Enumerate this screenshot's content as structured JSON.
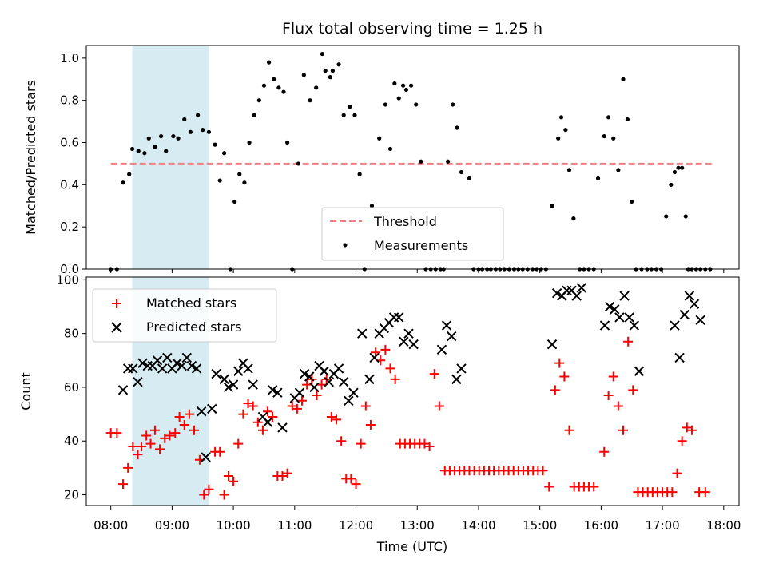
{
  "figure_title": "Flux total observing time = 1.25 h",
  "chart_data": [
    {
      "type": "scatter",
      "name": "ratio-panel",
      "xlim": [
        7.6,
        18.25
      ],
      "ylim": [
        0,
        1.06
      ],
      "ylabel": "Matched/Predicted stars",
      "yticks": [
        0,
        0.2,
        0.4,
        0.6,
        0.8,
        1.0
      ],
      "ytick_labels": [
        "0.0",
        "0.2",
        "0.4",
        "0.6",
        "0.8",
        "1.0"
      ],
      "shaded_span": [
        8.35,
        9.6
      ],
      "shade_color": "#add8e6",
      "threshold": 0.5,
      "threshold_color": "#f08080",
      "point_color": "#000000",
      "legend": {
        "position": "lower center",
        "entries": [
          "Threshold",
          "Measurements"
        ]
      },
      "x": [
        8.0,
        8.1,
        8.2,
        8.3,
        8.35,
        8.45,
        8.55,
        8.62,
        8.72,
        8.82,
        8.9,
        9.02,
        9.1,
        9.2,
        9.3,
        9.42,
        9.5,
        9.6,
        9.7,
        9.78,
        9.85,
        9.95,
        10.02,
        10.1,
        10.18,
        10.26,
        10.34,
        10.42,
        10.5,
        10.58,
        10.66,
        10.74,
        10.82,
        10.88,
        10.96,
        11.06,
        11.15,
        11.25,
        11.35,
        11.45,
        11.5,
        11.58,
        11.62,
        11.72,
        11.8,
        11.9,
        11.98,
        12.06,
        12.14,
        12.26,
        12.38,
        12.48,
        12.56,
        12.63,
        12.7,
        12.77,
        12.82,
        12.9,
        12.98,
        13.06,
        13.14,
        13.22,
        13.3,
        13.38,
        13.43,
        13.5,
        13.58,
        13.65,
        13.72,
        13.85,
        13.92,
        14.0,
        14.06,
        14.14,
        14.2,
        14.28,
        14.35,
        14.42,
        14.5,
        14.58,
        14.65,
        14.72,
        14.8,
        14.88,
        14.95,
        15.02,
        15.1,
        15.2,
        15.3,
        15.35,
        15.42,
        15.48,
        15.55,
        15.65,
        15.72,
        15.8,
        15.88,
        15.95,
        16.05,
        16.12,
        16.2,
        16.28,
        16.36,
        16.43,
        16.5,
        16.57,
        16.66,
        16.75,
        16.82,
        16.9,
        16.98,
        17.06,
        17.14,
        17.2,
        17.26,
        17.32,
        17.38,
        17.42,
        17.48,
        17.55,
        17.62,
        17.7,
        17.78
      ],
      "y": [
        0.0,
        0.0,
        0.41,
        0.45,
        0.57,
        0.56,
        0.55,
        0.62,
        0.58,
        0.63,
        0.56,
        0.63,
        0.62,
        0.71,
        0.65,
        0.73,
        0.66,
        0.65,
        0.59,
        0.42,
        0.55,
        0.0,
        0.32,
        0.45,
        0.41,
        0.6,
        0.73,
        0.8,
        0.87,
        0.98,
        0.9,
        0.86,
        0.84,
        0.6,
        0.0,
        0.5,
        0.92,
        0.8,
        0.86,
        1.02,
        0.94,
        0.91,
        0.94,
        0.97,
        0.73,
        0.77,
        0.73,
        0.45,
        0.0,
        0.3,
        0.62,
        0.78,
        0.57,
        0.88,
        0.81,
        0.87,
        0.85,
        0.87,
        0.78,
        0.51,
        0.0,
        0.0,
        0.0,
        0.0,
        0.0,
        0.51,
        0.78,
        0.67,
        0.46,
        0.43,
        0.0,
        0.0,
        0.0,
        0.0,
        0.0,
        0.0,
        0.0,
        0.0,
        0.0,
        0.0,
        0.0,
        0.0,
        0.0,
        0.0,
        0.0,
        0.0,
        0.0,
        0.3,
        0.62,
        0.72,
        0.66,
        0.47,
        0.24,
        0.0,
        0.0,
        0.0,
        0.0,
        0.43,
        0.63,
        0.72,
        0.62,
        0.47,
        0.9,
        0.71,
        0.32,
        0.0,
        0.0,
        0.0,
        0.0,
        0.0,
        0.0,
        0.25,
        0.4,
        0.46,
        0.48,
        0.48,
        0.25,
        0.0,
        0.0,
        0.0,
        0.0,
        0.0,
        0.0
      ]
    },
    {
      "type": "scatter",
      "name": "count-panel",
      "xlim": [
        7.6,
        18.25
      ],
      "ylim": [
        16,
        101
      ],
      "xlabel": "Time (UTC)",
      "ylabel": "Count",
      "xticks": [
        8,
        9,
        10,
        11,
        12,
        13,
        14,
        15,
        16,
        17,
        18
      ],
      "xtick_labels": [
        "08:00",
        "09:00",
        "10:00",
        "11:00",
        "12:00",
        "13:00",
        "14:00",
        "15:00",
        "16:00",
        "17:00",
        "18:00"
      ],
      "yticks": [
        20,
        40,
        60,
        80,
        100
      ],
      "ytick_labels": [
        "20",
        "40",
        "60",
        "80",
        "100"
      ],
      "shaded_span": [
        8.35,
        9.6
      ],
      "legend": {
        "position": "upper left",
        "entries": [
          "Matched stars",
          "Predicted stars"
        ]
      },
      "series": [
        {
          "name": "Matched stars",
          "marker": "+",
          "color": "#ff0000",
          "points": [
            [
              8.0,
              43
            ],
            [
              8.1,
              43
            ],
            [
              8.2,
              24
            ],
            [
              8.28,
              30
            ],
            [
              8.36,
              38
            ],
            [
              8.44,
              35
            ],
            [
              8.5,
              38
            ],
            [
              8.58,
              42
            ],
            [
              8.65,
              39
            ],
            [
              8.72,
              44
            ],
            [
              8.8,
              37
            ],
            [
              8.88,
              41
            ],
            [
              8.96,
              42
            ],
            [
              9.05,
              43
            ],
            [
              9.12,
              49
            ],
            [
              9.2,
              46
            ],
            [
              9.28,
              50
            ],
            [
              9.36,
              44
            ],
            [
              9.45,
              33
            ],
            [
              9.52,
              20
            ],
            [
              9.6,
              22
            ],
            [
              9.7,
              36
            ],
            [
              9.78,
              36
            ],
            [
              9.85,
              20
            ],
            [
              9.92,
              27
            ],
            [
              10.0,
              25
            ],
            [
              10.08,
              39
            ],
            [
              10.16,
              50
            ],
            [
              10.24,
              54
            ],
            [
              10.32,
              53
            ],
            [
              10.4,
              47
            ],
            [
              10.48,
              44
            ],
            [
              10.56,
              51
            ],
            [
              10.64,
              49
            ],
            [
              10.72,
              27
            ],
            [
              10.8,
              27
            ],
            [
              10.88,
              28
            ],
            [
              10.96,
              53
            ],
            [
              11.04,
              52
            ],
            [
              11.12,
              55
            ],
            [
              11.2,
              61
            ],
            [
              11.28,
              63
            ],
            [
              11.36,
              57
            ],
            [
              11.44,
              61
            ],
            [
              11.52,
              63
            ],
            [
              11.6,
              49
            ],
            [
              11.68,
              48
            ],
            [
              11.76,
              40
            ],
            [
              11.84,
              26
            ],
            [
              11.92,
              26
            ],
            [
              12.0,
              24
            ],
            [
              12.08,
              39
            ],
            [
              12.16,
              53
            ],
            [
              12.24,
              46
            ],
            [
              12.32,
              73
            ],
            [
              12.4,
              70
            ],
            [
              12.48,
              74
            ],
            [
              12.56,
              67
            ],
            [
              12.64,
              63
            ],
            [
              12.72,
              39
            ],
            [
              12.8,
              39
            ],
            [
              12.88,
              39
            ],
            [
              12.96,
              39
            ],
            [
              13.04,
              39
            ],
            [
              13.12,
              39
            ],
            [
              13.2,
              38
            ],
            [
              13.28,
              65
            ],
            [
              13.36,
              53
            ],
            [
              13.45,
              29
            ],
            [
              13.53,
              29
            ],
            [
              13.61,
              29
            ],
            [
              13.69,
              29
            ],
            [
              13.77,
              29
            ],
            [
              13.85,
              29
            ],
            [
              13.93,
              29
            ],
            [
              14.01,
              29
            ],
            [
              14.09,
              29
            ],
            [
              14.17,
              29
            ],
            [
              14.25,
              29
            ],
            [
              14.33,
              29
            ],
            [
              14.41,
              29
            ],
            [
              14.49,
              29
            ],
            [
              14.57,
              29
            ],
            [
              14.65,
              29
            ],
            [
              14.73,
              29
            ],
            [
              14.81,
              29
            ],
            [
              14.89,
              29
            ],
            [
              14.97,
              29
            ],
            [
              15.05,
              29
            ],
            [
              15.15,
              23
            ],
            [
              15.25,
              59
            ],
            [
              15.32,
              69
            ],
            [
              15.4,
              64
            ],
            [
              15.48,
              44
            ],
            [
              15.56,
              23
            ],
            [
              15.64,
              23
            ],
            [
              15.72,
              23
            ],
            [
              15.8,
              23
            ],
            [
              15.88,
              23
            ],
            [
              16.05,
              36
            ],
            [
              16.12,
              57
            ],
            [
              16.2,
              64
            ],
            [
              16.28,
              53
            ],
            [
              16.36,
              44
            ],
            [
              16.44,
              77
            ],
            [
              16.52,
              59
            ],
            [
              16.6,
              21
            ],
            [
              16.68,
              21
            ],
            [
              16.76,
              21
            ],
            [
              16.84,
              21
            ],
            [
              16.92,
              21
            ],
            [
              17.0,
              21
            ],
            [
              17.08,
              21
            ],
            [
              17.16,
              21
            ],
            [
              17.24,
              28
            ],
            [
              17.32,
              40
            ],
            [
              17.4,
              45
            ],
            [
              17.48,
              44
            ],
            [
              17.6,
              21
            ],
            [
              17.7,
              21
            ]
          ]
        },
        {
          "name": "Predicted stars",
          "marker": "x",
          "color": "#000000",
          "points": [
            [
              8.2,
              59
            ],
            [
              8.28,
              67
            ],
            [
              8.36,
              67
            ],
            [
              8.44,
              62
            ],
            [
              8.52,
              69
            ],
            [
              8.6,
              68
            ],
            [
              8.68,
              68
            ],
            [
              8.76,
              70
            ],
            [
              8.84,
              67
            ],
            [
              8.92,
              71
            ],
            [
              9.0,
              67
            ],
            [
              9.08,
              69
            ],
            [
              9.16,
              68
            ],
            [
              9.24,
              71
            ],
            [
              9.32,
              68
            ],
            [
              9.4,
              67
            ],
            [
              9.48,
              51
            ],
            [
              9.55,
              34
            ],
            [
              9.65,
              52
            ],
            [
              9.72,
              65
            ],
            [
              9.85,
              63
            ],
            [
              9.92,
              60
            ],
            [
              10.0,
              61
            ],
            [
              10.08,
              66
            ],
            [
              10.16,
              69
            ],
            [
              10.24,
              67
            ],
            [
              10.32,
              61
            ],
            [
              10.48,
              49
            ],
            [
              10.56,
              47
            ],
            [
              10.64,
              59
            ],
            [
              10.72,
              58
            ],
            [
              10.8,
              45
            ],
            [
              11.0,
              56
            ],
            [
              11.08,
              58
            ],
            [
              11.16,
              65
            ],
            [
              11.24,
              64
            ],
            [
              11.32,
              60
            ],
            [
              11.4,
              68
            ],
            [
              11.48,
              66
            ],
            [
              11.56,
              62
            ],
            [
              11.64,
              65
            ],
            [
              11.72,
              67
            ],
            [
              11.8,
              62
            ],
            [
              11.88,
              55
            ],
            [
              11.96,
              58
            ],
            [
              12.1,
              80
            ],
            [
              12.22,
              63
            ],
            [
              12.3,
              71
            ],
            [
              12.38,
              80
            ],
            [
              12.46,
              82
            ],
            [
              12.54,
              84
            ],
            [
              12.62,
              86
            ],
            [
              12.7,
              86
            ],
            [
              12.78,
              77
            ],
            [
              12.86,
              80
            ],
            [
              12.94,
              76
            ],
            [
              13.4,
              74
            ],
            [
              13.48,
              83
            ],
            [
              13.56,
              79
            ],
            [
              13.64,
              63
            ],
            [
              13.72,
              67
            ],
            [
              15.2,
              76
            ],
            [
              15.28,
              95
            ],
            [
              15.36,
              94
            ],
            [
              15.44,
              96
            ],
            [
              15.52,
              96
            ],
            [
              15.6,
              94
            ],
            [
              15.68,
              97
            ],
            [
              16.06,
              83
            ],
            [
              16.14,
              90
            ],
            [
              16.22,
              89
            ],
            [
              16.3,
              86
            ],
            [
              16.38,
              94
            ],
            [
              16.46,
              86
            ],
            [
              16.54,
              83
            ],
            [
              16.62,
              66
            ],
            [
              17.2,
              83
            ],
            [
              17.28,
              71
            ],
            [
              17.36,
              87
            ],
            [
              17.44,
              94
            ],
            [
              17.52,
              91
            ],
            [
              17.62,
              85
            ]
          ]
        }
      ]
    }
  ]
}
